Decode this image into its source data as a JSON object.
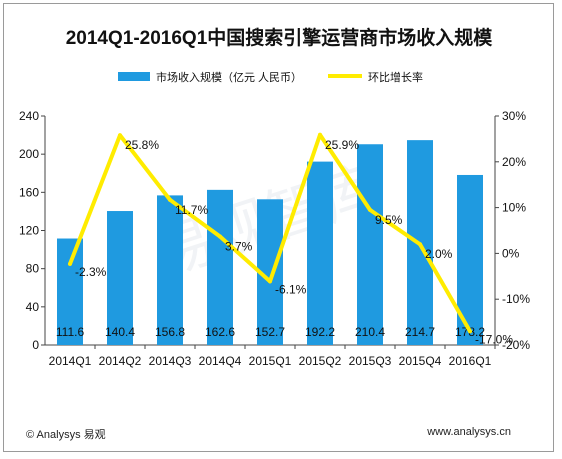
{
  "chart_data": {
    "type": "bar+line",
    "title": "2014Q1-2016Q1中国搜索引擎运营商市场收入规模",
    "categories": [
      "2014Q1",
      "2014Q2",
      "2014Q3",
      "2014Q4",
      "2015Q1",
      "2015Q2",
      "2015Q3",
      "2015Q4",
      "2016Q1"
    ],
    "series": [
      {
        "name": "市场收入规模（亿元 人民币）",
        "type": "bar",
        "axis": "left",
        "color": "#1f9ae0",
        "values": [
          111.6,
          140.4,
          156.8,
          162.6,
          152.7,
          192.2,
          210.4,
          214.7,
          178.2
        ],
        "labels": [
          "111.6",
          "140.4",
          "156.8",
          "162.6",
          "152.7",
          "192.2",
          "210.4",
          "214.7",
          "178.2"
        ]
      },
      {
        "name": "环比增长率",
        "type": "line",
        "axis": "right",
        "color": "#ffec00",
        "values": [
          -2.3,
          25.8,
          11.7,
          3.7,
          -6.1,
          25.9,
          9.5,
          2.0,
          -17.0
        ],
        "labels": [
          "-2.3%",
          "25.8%",
          "11.7%",
          "3.7%",
          "-6.1%",
          "25.9%",
          "9.5%",
          "2.0%",
          "-17.0%"
        ]
      }
    ],
    "y_left": {
      "min": 0,
      "max": 240,
      "ticks": [
        0,
        40,
        80,
        120,
        160,
        200,
        240
      ],
      "tick_labels": [
        "0",
        "40",
        "80",
        "120",
        "160",
        "200",
        "240"
      ]
    },
    "y_right": {
      "min": -20,
      "max": 30,
      "ticks": [
        -20,
        -10,
        0,
        10,
        20,
        30
      ],
      "tick_labels": [
        "-20%",
        "-10%",
        "0%",
        "10%",
        "20%",
        "30%"
      ]
    },
    "legend_position": "top",
    "grid": false,
    "watermark": "易观智库"
  },
  "footer": {
    "source": "© Analysys 易观",
    "website": "www.analysys.cn"
  }
}
